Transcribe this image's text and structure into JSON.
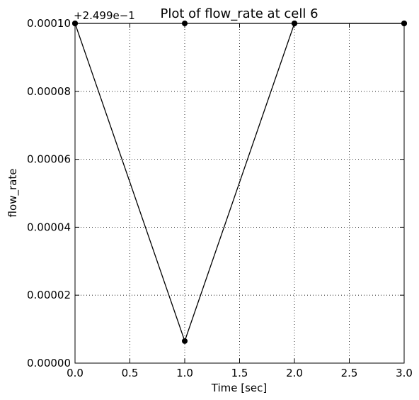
{
  "chart_data": {
    "type": "line",
    "title": "Plot of flow_rate at cell 6",
    "xlabel": "Time [sec]",
    "ylabel": "flow_rate",
    "offset_label": "+2.499e−1",
    "xlim": [
      0.0,
      3.0
    ],
    "ylim": [
      0.0,
      0.0001
    ],
    "xticks": [
      0.0,
      0.5,
      1.0,
      1.5,
      2.0,
      2.5,
      3.0
    ],
    "xtick_labels": [
      "0.0",
      "0.5",
      "1.0",
      "1.5",
      "2.0",
      "2.5",
      "3.0"
    ],
    "yticks": [
      0.0,
      2e-05,
      4e-05,
      6e-05,
      8e-05,
      0.0001
    ],
    "ytick_labels": [
      "0.00000",
      "0.00002",
      "0.00004",
      "0.00006",
      "0.00008",
      "0.00010"
    ],
    "grid": true,
    "series": [
      {
        "color": "#000000",
        "marker": "circle",
        "x": [
          0.0,
          1.0,
          2.0,
          3.0
        ],
        "y": [
          0.0001,
          6.5e-06,
          0.0001,
          0.0001
        ]
      },
      {
        "color": "#000000",
        "marker": "circle",
        "x": [
          0.0,
          1.0,
          2.0,
          3.0
        ],
        "y": [
          0.0001,
          0.0001,
          0.0001,
          0.0001
        ]
      }
    ]
  }
}
